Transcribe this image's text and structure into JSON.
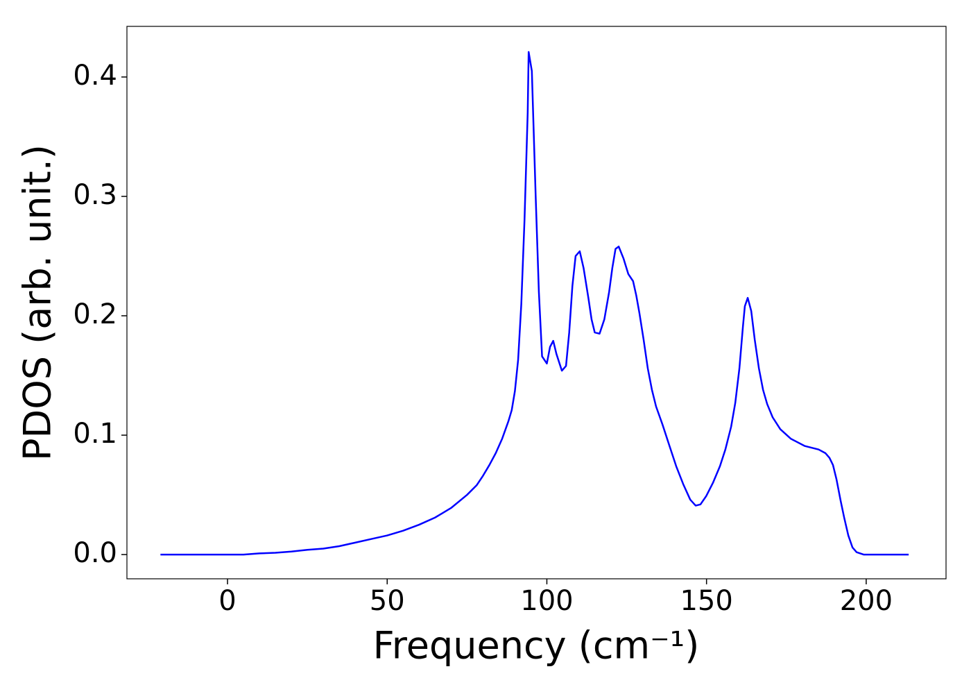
{
  "chart_data": {
    "type": "line",
    "xlabel": "Frequency (cm⁻¹)",
    "ylabel": "PDOS (arb. unit.)",
    "xlim": [
      -31.5,
      225
    ],
    "ylim": [
      -0.0203,
      0.4424
    ],
    "xticks": [
      0,
      50,
      100,
      150,
      200
    ],
    "yticks": [
      {
        "value": 0,
        "label": "0.0"
      },
      0.1,
      0.2,
      0.3,
      0.4
    ],
    "grid": false,
    "series": [
      {
        "name": "PDOS",
        "color": "#0000ff",
        "x": [
          -21,
          -10,
          0,
          5,
          10,
          15,
          20,
          25,
          30,
          35,
          40,
          45,
          50,
          55,
          60,
          65,
          70,
          75,
          78,
          80,
          82,
          84,
          86,
          88,
          89,
          90,
          91,
          92,
          93,
          94,
          94.3,
          95.3,
          96.5,
          97.5,
          98.5,
          100,
          101,
          102,
          103,
          104.7,
          106,
          107,
          108,
          109,
          110.3,
          111.5,
          113,
          114,
          115,
          116.5,
          118,
          119.5,
          120.5,
          121.5,
          122.5,
          124,
          125.5,
          127,
          128,
          129,
          130.3,
          131.6,
          132.9,
          134.2,
          136.2,
          138.4,
          140.5,
          142.7,
          144.9,
          146.6,
          148.1,
          149.9,
          152,
          154.2,
          155.9,
          157.7,
          159,
          160.3,
          161.4,
          162,
          162.9,
          164,
          165.1,
          166.4,
          167.7,
          169,
          170.7,
          173.1,
          176.4,
          180.7,
          185.1,
          187.2,
          188.5,
          189.6,
          190.7,
          192,
          193.1,
          194.4,
          195.7,
          197,
          199.2,
          213.3
        ],
        "values": [
          0,
          0,
          0,
          0,
          0.001,
          0.0015,
          0.0025,
          0.004,
          0.005,
          0.007,
          0.01,
          0.013,
          0.016,
          0.02,
          0.025,
          0.031,
          0.039,
          0.05,
          0.058,
          0.066,
          0.075,
          0.085,
          0.097,
          0.112,
          0.121,
          0.137,
          0.163,
          0.21,
          0.28,
          0.37,
          0.421,
          0.405,
          0.3,
          0.22,
          0.166,
          0.16,
          0.174,
          0.179,
          0.168,
          0.154,
          0.158,
          0.186,
          0.225,
          0.25,
          0.254,
          0.24,
          0.215,
          0.197,
          0.186,
          0.185,
          0.197,
          0.22,
          0.24,
          0.256,
          0.258,
          0.248,
          0.235,
          0.229,
          0.217,
          0.202,
          0.18,
          0.156,
          0.138,
          0.124,
          0.109,
          0.091,
          0.074,
          0.059,
          0.046,
          0.041,
          0.042,
          0.049,
          0.06,
          0.074,
          0.088,
          0.107,
          0.127,
          0.156,
          0.191,
          0.208,
          0.215,
          0.204,
          0.18,
          0.156,
          0.138,
          0.126,
          0.115,
          0.105,
          0.097,
          0.091,
          0.088,
          0.085,
          0.081,
          0.075,
          0.063,
          0.045,
          0.031,
          0.016,
          0.006,
          0.002,
          0,
          0
        ]
      }
    ]
  }
}
